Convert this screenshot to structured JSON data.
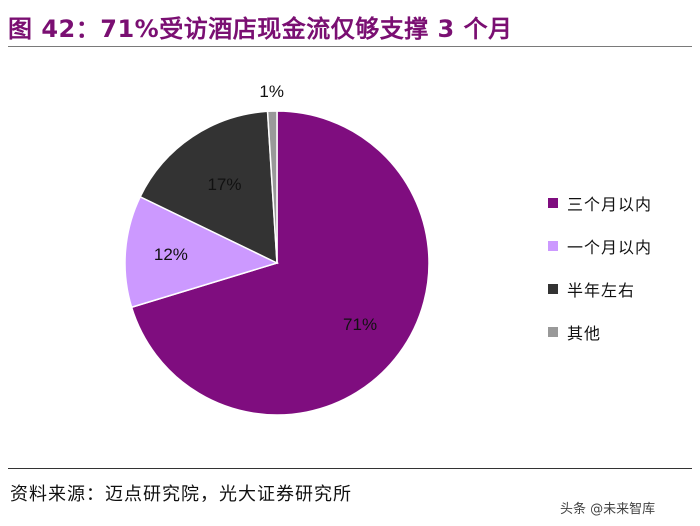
{
  "header": {
    "title": "图 42：71%受访酒店现金流仅够支撑 3 个月"
  },
  "chart_data": {
    "type": "pie",
    "categories": [
      "三个月以内",
      "一个月以内",
      "半年左右",
      "其他"
    ],
    "values": [
      71,
      12,
      17,
      1
    ],
    "data_labels": [
      "71%",
      "12%",
      "17%",
      "1%"
    ],
    "colors": [
      "#7f0d7f",
      "#cc99ff",
      "#333333",
      "#999999"
    ],
    "legend_position": "right",
    "start": "12 o'clock",
    "direction": "clockwise"
  },
  "footer": {
    "source": "资料来源：迈点研究院，光大证券研究所",
    "watermark": "头条 @未来智库"
  }
}
